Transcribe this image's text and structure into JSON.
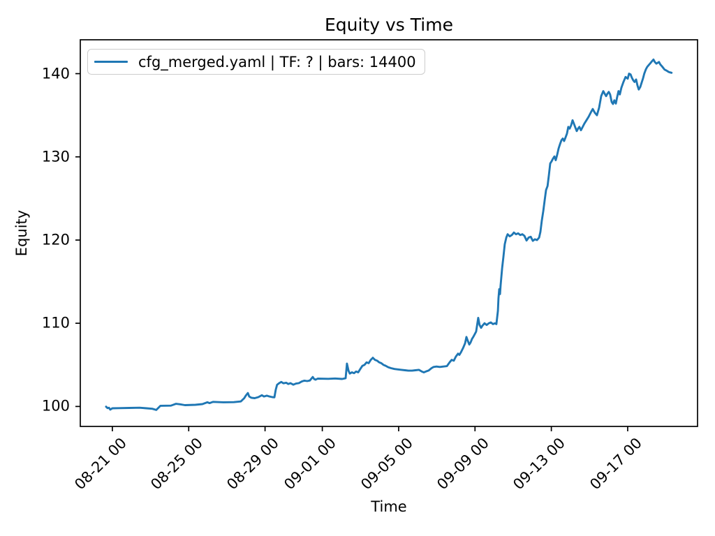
{
  "figure": {
    "background": "#ffffff",
    "text_color": "#000000",
    "spine_color": "#000000",
    "legend_border_color": "#cccccc"
  },
  "chart_data": {
    "type": "line",
    "title": "Equity vs Time",
    "xlabel": "Time",
    "ylabel": "Equity",
    "grid": false,
    "legend_position": "upper-left",
    "x_axis": {
      "unit": "days since 08-21 00:00",
      "range": [
        -1.68,
        30.66
      ],
      "ticks": [
        {
          "day": 0,
          "label": "08-21 00"
        },
        {
          "day": 4,
          "label": "08-25 00"
        },
        {
          "day": 8,
          "label": "08-29 00"
        },
        {
          "day": 11,
          "label": "09-01 00"
        },
        {
          "day": 15,
          "label": "09-05 00"
        },
        {
          "day": 19,
          "label": "09-09 00"
        },
        {
          "day": 23,
          "label": "09-13 00"
        },
        {
          "day": 27,
          "label": "09-17 00"
        }
      ]
    },
    "y_axis": {
      "range": [
        97.6,
        144.07
      ],
      "ticks": [
        100,
        110,
        120,
        130,
        140
      ]
    },
    "series": [
      {
        "name": "cfg_merged.yaml | TF: ? | bars: 14400",
        "color": "#1f77b4",
        "points": [
          [
            -0.33,
            99.97
          ],
          [
            -0.25,
            99.8
          ],
          [
            -0.18,
            99.85
          ],
          [
            -0.11,
            99.62
          ],
          [
            0.0,
            99.78
          ],
          [
            0.33,
            99.8
          ],
          [
            0.88,
            99.82
          ],
          [
            1.43,
            99.85
          ],
          [
            1.79,
            99.78
          ],
          [
            2.09,
            99.72
          ],
          [
            2.3,
            99.58
          ],
          [
            2.52,
            100.08
          ],
          [
            3.07,
            100.1
          ],
          [
            3.33,
            100.32
          ],
          [
            3.55,
            100.26
          ],
          [
            3.8,
            100.16
          ],
          [
            4.35,
            100.2
          ],
          [
            4.72,
            100.28
          ],
          [
            4.98,
            100.5
          ],
          [
            5.09,
            100.4
          ],
          [
            5.27,
            100.55
          ],
          [
            5.82,
            100.5
          ],
          [
            6.37,
            100.52
          ],
          [
            6.73,
            100.6
          ],
          [
            6.91,
            101.0
          ],
          [
            6.99,
            101.3
          ],
          [
            7.1,
            101.62
          ],
          [
            7.17,
            101.2
          ],
          [
            7.28,
            101.05
          ],
          [
            7.46,
            101.0
          ],
          [
            7.65,
            101.12
          ],
          [
            7.83,
            101.35
          ],
          [
            7.94,
            101.2
          ],
          [
            8.09,
            101.3
          ],
          [
            8.23,
            101.2
          ],
          [
            8.38,
            101.12
          ],
          [
            8.49,
            101.1
          ],
          [
            8.56,
            102.0
          ],
          [
            8.63,
            102.6
          ],
          [
            8.74,
            102.8
          ],
          [
            8.85,
            102.95
          ],
          [
            8.96,
            102.78
          ],
          [
            9.11,
            102.85
          ],
          [
            9.22,
            102.7
          ],
          [
            9.33,
            102.8
          ],
          [
            9.48,
            102.62
          ],
          [
            9.62,
            102.75
          ],
          [
            9.77,
            102.8
          ],
          [
            9.92,
            103.0
          ],
          [
            10.06,
            103.1
          ],
          [
            10.21,
            103.05
          ],
          [
            10.35,
            103.12
          ],
          [
            10.5,
            103.55
          ],
          [
            10.57,
            103.3
          ],
          [
            10.65,
            103.22
          ],
          [
            10.76,
            103.35
          ],
          [
            11.31,
            103.32
          ],
          [
            11.67,
            103.36
          ],
          [
            12.04,
            103.3
          ],
          [
            12.22,
            103.4
          ],
          [
            12.29,
            105.15
          ],
          [
            12.37,
            104.3
          ],
          [
            12.44,
            103.95
          ],
          [
            12.55,
            104.1
          ],
          [
            12.66,
            104.0
          ],
          [
            12.77,
            104.2
          ],
          [
            12.88,
            104.1
          ],
          [
            12.99,
            104.5
          ],
          [
            13.1,
            104.88
          ],
          [
            13.21,
            105.0
          ],
          [
            13.32,
            105.3
          ],
          [
            13.43,
            105.2
          ],
          [
            13.54,
            105.6
          ],
          [
            13.65,
            105.85
          ],
          [
            13.76,
            105.6
          ],
          [
            13.87,
            105.5
          ],
          [
            13.98,
            105.3
          ],
          [
            14.09,
            105.2
          ],
          [
            14.2,
            105.0
          ],
          [
            14.31,
            104.9
          ],
          [
            14.45,
            104.72
          ],
          [
            14.6,
            104.6
          ],
          [
            14.78,
            104.5
          ],
          [
            14.96,
            104.45
          ],
          [
            15.15,
            104.4
          ],
          [
            15.33,
            104.35
          ],
          [
            15.51,
            104.3
          ],
          [
            15.7,
            104.3
          ],
          [
            15.88,
            104.35
          ],
          [
            16.06,
            104.4
          ],
          [
            16.21,
            104.2
          ],
          [
            16.32,
            104.1
          ],
          [
            16.43,
            104.2
          ],
          [
            16.57,
            104.32
          ],
          [
            16.72,
            104.6
          ],
          [
            16.83,
            104.75
          ],
          [
            16.98,
            104.8
          ],
          [
            17.16,
            104.75
          ],
          [
            17.34,
            104.8
          ],
          [
            17.53,
            104.85
          ],
          [
            17.67,
            105.3
          ],
          [
            17.78,
            105.6
          ],
          [
            17.89,
            105.5
          ],
          [
            18.0,
            106.0
          ],
          [
            18.11,
            106.35
          ],
          [
            18.18,
            106.2
          ],
          [
            18.26,
            106.5
          ],
          [
            18.37,
            107.0
          ],
          [
            18.48,
            107.6
          ],
          [
            18.55,
            108.35
          ],
          [
            18.62,
            107.9
          ],
          [
            18.7,
            107.45
          ],
          [
            18.77,
            107.7
          ],
          [
            18.84,
            108.1
          ],
          [
            18.92,
            108.4
          ],
          [
            18.99,
            108.7
          ],
          [
            19.06,
            109.0
          ],
          [
            19.17,
            110.65
          ],
          [
            19.24,
            109.8
          ],
          [
            19.32,
            109.45
          ],
          [
            19.39,
            109.7
          ],
          [
            19.5,
            110.0
          ],
          [
            19.61,
            109.8
          ],
          [
            19.72,
            110.0
          ],
          [
            19.83,
            110.1
          ],
          [
            19.94,
            109.9
          ],
          [
            20.05,
            110.0
          ],
          [
            20.12,
            109.9
          ],
          [
            20.2,
            111.5
          ],
          [
            20.23,
            113.0
          ],
          [
            20.27,
            114.1
          ],
          [
            20.31,
            113.5
          ],
          [
            20.34,
            114.5
          ],
          [
            20.42,
            116.6
          ],
          [
            20.49,
            118.0
          ],
          [
            20.56,
            119.5
          ],
          [
            20.64,
            120.3
          ],
          [
            20.71,
            120.7
          ],
          [
            20.82,
            120.45
          ],
          [
            20.93,
            120.6
          ],
          [
            21.04,
            120.9
          ],
          [
            21.15,
            120.7
          ],
          [
            21.26,
            120.8
          ],
          [
            21.37,
            120.6
          ],
          [
            21.48,
            120.7
          ],
          [
            21.59,
            120.5
          ],
          [
            21.7,
            119.95
          ],
          [
            21.81,
            120.3
          ],
          [
            21.92,
            120.4
          ],
          [
            22.03,
            119.9
          ],
          [
            22.14,
            120.1
          ],
          [
            22.25,
            120.0
          ],
          [
            22.36,
            120.3
          ],
          [
            22.43,
            121.0
          ],
          [
            22.5,
            122.3
          ],
          [
            22.58,
            123.5
          ],
          [
            22.65,
            124.8
          ],
          [
            22.72,
            126.0
          ],
          [
            22.8,
            126.5
          ],
          [
            22.87,
            127.8
          ],
          [
            22.94,
            129.2
          ],
          [
            23.02,
            129.5
          ],
          [
            23.09,
            129.8
          ],
          [
            23.16,
            130.05
          ],
          [
            23.23,
            129.6
          ],
          [
            23.31,
            130.3
          ],
          [
            23.38,
            131.0
          ],
          [
            23.45,
            131.5
          ],
          [
            23.53,
            132.0
          ],
          [
            23.6,
            132.2
          ],
          [
            23.67,
            131.9
          ],
          [
            23.74,
            132.3
          ],
          [
            23.82,
            132.8
          ],
          [
            23.89,
            133.6
          ],
          [
            23.96,
            133.4
          ],
          [
            24.04,
            133.8
          ],
          [
            24.11,
            134.4
          ],
          [
            24.18,
            134.0
          ],
          [
            24.26,
            133.5
          ],
          [
            24.33,
            133.1
          ],
          [
            24.4,
            133.4
          ],
          [
            24.47,
            133.6
          ],
          [
            24.55,
            133.2
          ],
          [
            24.62,
            133.5
          ],
          [
            24.73,
            134.0
          ],
          [
            24.84,
            134.4
          ],
          [
            24.95,
            134.8
          ],
          [
            25.06,
            135.3
          ],
          [
            25.17,
            135.75
          ],
          [
            25.28,
            135.3
          ],
          [
            25.39,
            135.0
          ],
          [
            25.5,
            135.9
          ],
          [
            25.61,
            137.3
          ],
          [
            25.72,
            137.9
          ],
          [
            25.79,
            137.6
          ],
          [
            25.87,
            137.3
          ],
          [
            25.94,
            137.6
          ],
          [
            26.01,
            137.8
          ],
          [
            26.08,
            137.5
          ],
          [
            26.16,
            136.6
          ],
          [
            26.23,
            136.35
          ],
          [
            26.3,
            136.8
          ],
          [
            26.38,
            136.4
          ],
          [
            26.45,
            137.2
          ],
          [
            26.52,
            137.9
          ],
          [
            26.59,
            137.5
          ],
          [
            26.67,
            138.3
          ],
          [
            26.78,
            139.0
          ],
          [
            26.89,
            139.6
          ],
          [
            27.0,
            139.4
          ],
          [
            27.07,
            140.0
          ],
          [
            27.15,
            139.9
          ],
          [
            27.22,
            139.5
          ],
          [
            27.29,
            139.2
          ],
          [
            27.36,
            139.0
          ],
          [
            27.44,
            139.3
          ],
          [
            27.51,
            138.6
          ],
          [
            27.58,
            138.1
          ],
          [
            27.66,
            138.4
          ],
          [
            27.73,
            138.9
          ],
          [
            27.8,
            139.4
          ],
          [
            27.87,
            140.0
          ],
          [
            27.95,
            140.5
          ],
          [
            28.02,
            140.8
          ],
          [
            28.09,
            141.0
          ],
          [
            28.17,
            141.2
          ],
          [
            28.28,
            141.5
          ],
          [
            28.35,
            141.7
          ],
          [
            28.42,
            141.4
          ],
          [
            28.5,
            141.2
          ],
          [
            28.57,
            141.3
          ],
          [
            28.64,
            141.4
          ],
          [
            28.71,
            141.1
          ],
          [
            28.79,
            140.9
          ],
          [
            28.86,
            140.7
          ],
          [
            28.93,
            140.5
          ],
          [
            29.01,
            140.4
          ],
          [
            29.08,
            140.3
          ],
          [
            29.15,
            140.2
          ],
          [
            29.22,
            140.15
          ],
          [
            29.3,
            140.1
          ]
        ]
      }
    ]
  }
}
